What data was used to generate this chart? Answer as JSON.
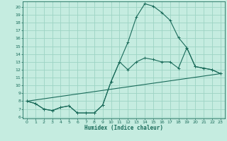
{
  "xlabel": "Humidex (Indice chaleur)",
  "bg_color": "#c5ece0",
  "grid_color": "#9dd4c4",
  "line_color": "#1a6b5a",
  "xlim": [
    -0.5,
    23.5
  ],
  "ylim": [
    5.8,
    20.7
  ],
  "yticks": [
    6,
    7,
    8,
    9,
    10,
    11,
    12,
    13,
    14,
    15,
    16,
    17,
    18,
    19,
    20
  ],
  "xticks": [
    0,
    1,
    2,
    3,
    4,
    5,
    6,
    7,
    8,
    9,
    10,
    11,
    12,
    13,
    14,
    15,
    16,
    17,
    18,
    19,
    20,
    21,
    22,
    23
  ],
  "line1_x": [
    0,
    1,
    2,
    3,
    4,
    5,
    6,
    7,
    8,
    9,
    10,
    11,
    12,
    13,
    14,
    15,
    16,
    17,
    18,
    19,
    20,
    21,
    22,
    23
  ],
  "line1_y": [
    8.0,
    7.7,
    7.0,
    6.8,
    7.2,
    7.4,
    6.5,
    6.5,
    6.5,
    7.5,
    10.5,
    13.0,
    15.5,
    18.7,
    20.4,
    20.1,
    19.3,
    18.3,
    16.1,
    14.8,
    12.4,
    12.2,
    12.0,
    11.5
  ],
  "line2_x": [
    0,
    1,
    2,
    3,
    4,
    5,
    6,
    7,
    8,
    9,
    10,
    11,
    12,
    13,
    14,
    15,
    16,
    17,
    18,
    19,
    20,
    21,
    22,
    23
  ],
  "line2_y": [
    8.0,
    7.7,
    7.0,
    6.8,
    7.2,
    7.4,
    6.5,
    6.5,
    6.5,
    7.5,
    10.5,
    13.0,
    12.0,
    13.0,
    13.5,
    13.3,
    13.0,
    13.0,
    12.2,
    14.8,
    12.4,
    12.2,
    12.0,
    11.5
  ],
  "line3_x": [
    0,
    23
  ],
  "line3_y": [
    8.0,
    11.5
  ]
}
